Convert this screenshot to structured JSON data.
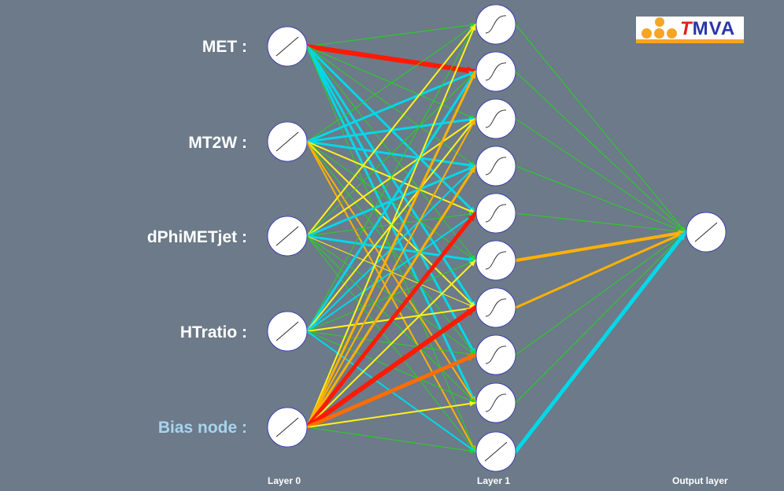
{
  "layers": {
    "input": {
      "label": "Layer 0",
      "nodes": [
        "MET :",
        "MT2W :",
        "dPhiMETjet :",
        "HTratio :",
        "Bias node :"
      ]
    },
    "hidden": {
      "label": "Layer 1",
      "node_count": 10
    },
    "output": {
      "label": "Output layer",
      "node_count": 1
    }
  },
  "logo": {
    "brand": "TMVA",
    "accent": "#e0201b",
    "color": "#2a36a8",
    "bar": "#f5a623"
  },
  "colors": {
    "background": "#6c7a89",
    "node_fill": "#ffffff",
    "node_stroke": "#2b2bb0",
    "bias_label": "#a8d4ee",
    "weight_scale": [
      "#25d51f",
      "#00d8e8",
      "#fff21a",
      "#ffb100",
      "#ff6c00",
      "#ff1a00"
    ]
  },
  "weights": {
    "layer0_to_layer1": [
      [
        [
          0,
          1
        ],
        [
          5,
          6
        ],
        [
          0,
          1
        ],
        [
          0,
          1
        ],
        [
          1,
          3
        ],
        [
          0,
          1
        ],
        [
          1,
          3
        ],
        [
          1,
          3
        ],
        [
          1,
          3
        ],
        [
          0,
          1
        ]
      ],
      [
        [
          0,
          1
        ],
        [
          1,
          3
        ],
        [
          1,
          3
        ],
        [
          1,
          3
        ],
        [
          2,
          2
        ],
        [
          0,
          1
        ],
        [
          2,
          2
        ],
        [
          0,
          1
        ],
        [
          3,
          2
        ],
        [
          3,
          2
        ]
      ],
      [
        [
          2,
          2
        ],
        [
          0,
          1
        ],
        [
          2,
          2
        ],
        [
          1,
          3
        ],
        [
          0,
          1
        ],
        [
          1,
          3
        ],
        [
          2,
          1
        ],
        [
          0,
          1
        ],
        [
          0,
          1
        ],
        [
          0,
          1
        ]
      ],
      [
        [
          0,
          1
        ],
        [
          1,
          3
        ],
        [
          2,
          2
        ],
        [
          1,
          2
        ],
        [
          1,
          2
        ],
        [
          0,
          1
        ],
        [
          2,
          2
        ],
        [
          0,
          1
        ],
        [
          0,
          1
        ],
        [
          1,
          2
        ]
      ],
      [
        [
          2,
          2
        ],
        [
          3,
          3
        ],
        [
          3,
          2
        ],
        [
          3,
          3
        ],
        [
          5,
          5
        ],
        [
          2,
          2
        ],
        [
          5,
          6
        ],
        [
          4,
          5
        ],
        [
          2,
          2
        ],
        [
          0,
          1
        ]
      ]
    ],
    "layer1_to_output": [
      [
        0,
        1
      ],
      [
        0,
        1
      ],
      [
        0,
        1
      ],
      [
        0,
        1
      ],
      [
        0,
        1
      ],
      [
        3,
        4
      ],
      [
        3,
        3
      ],
      [
        0,
        1
      ],
      [
        0,
        1
      ],
      [
        1,
        5
      ]
    ]
  }
}
